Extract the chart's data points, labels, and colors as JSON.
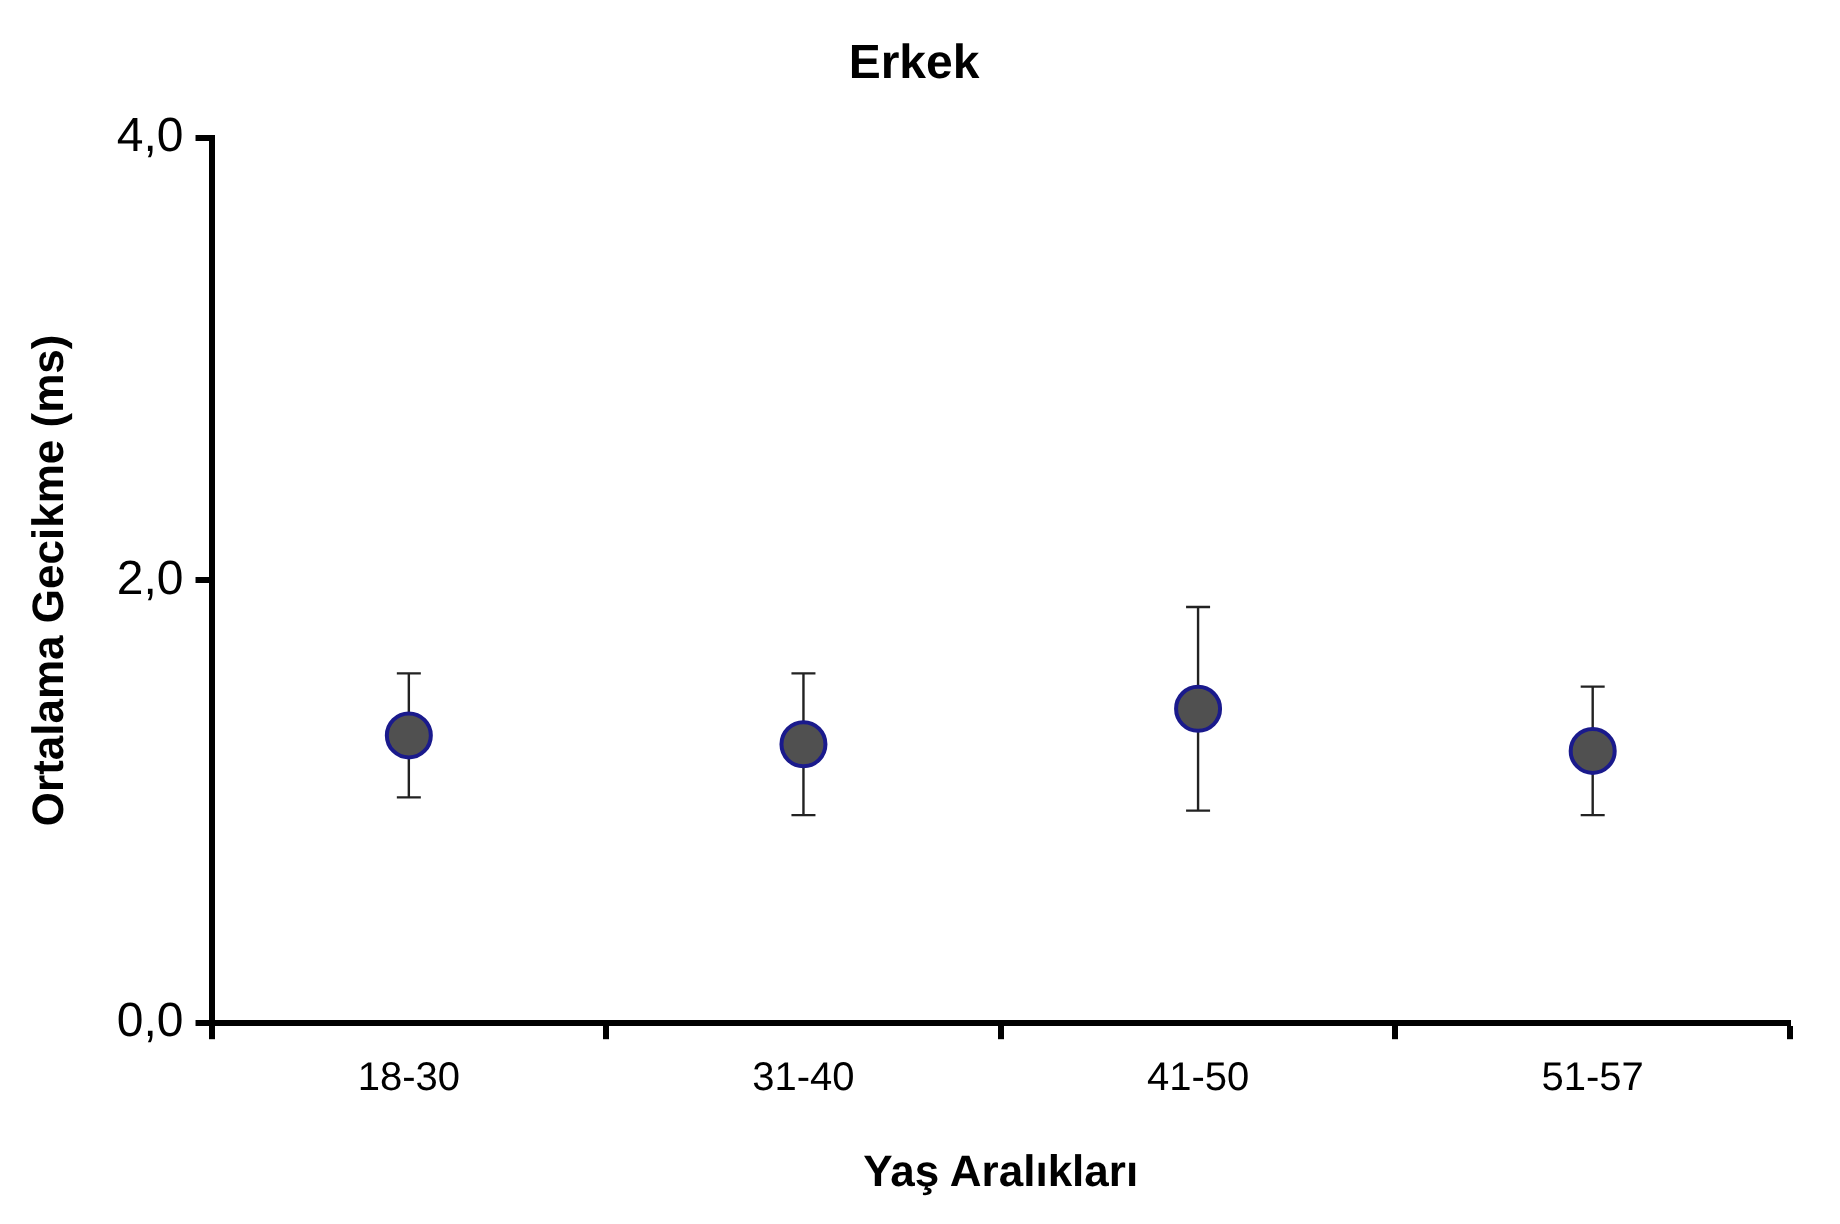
{
  "chart_data": {
    "type": "scatter",
    "title": "Erkek",
    "xlabel": "Yaş Aralıkları",
    "ylabel": "Ortalama Gecikme (ms)",
    "categories": [
      "18-30",
      "31-40",
      "41-50",
      "51-57"
    ],
    "series": [
      {
        "color": "#505050",
        "values": [
          1.3,
          1.26,
          1.42,
          1.23
        ],
        "errors": [
          0.28,
          0.32,
          0.46,
          0.29
        ]
      }
    ],
    "ylim": [
      0,
      4
    ],
    "yticks": [
      {
        "value": 0,
        "label": "0,0"
      },
      {
        "value": 2,
        "label": "2,0"
      },
      {
        "value": 4,
        "label": "4,0"
      }
    ],
    "grid": false,
    "legend": false,
    "marker": "circle"
  }
}
